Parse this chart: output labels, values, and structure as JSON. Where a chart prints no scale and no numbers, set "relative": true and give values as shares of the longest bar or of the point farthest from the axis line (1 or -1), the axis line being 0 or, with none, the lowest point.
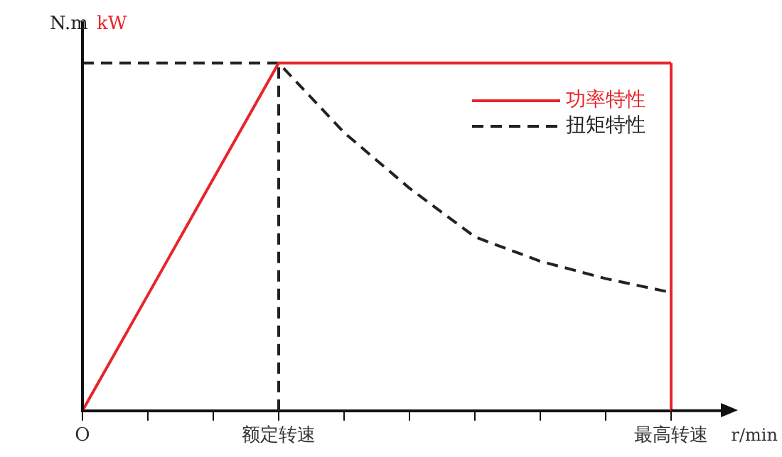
{
  "chart_data": {
    "type": "line",
    "xlabel": "r/min",
    "ylabel": "N.m",
    "y2label": "kW",
    "relative": true,
    "categories": [
      "O",
      null,
      null,
      "额定转速",
      null,
      null,
      null,
      null,
      null,
      "最高转速"
    ],
    "series": [
      {
        "name": "功率特性",
        "color": "#e8242b",
        "line_style": "solid",
        "values": [
          0,
          0.333,
          0.667,
          1,
          1,
          1,
          1,
          1,
          1,
          1
        ]
      },
      {
        "name": "扭矩特性",
        "color": "#222222",
        "line_style": "dashed",
        "values": [
          1,
          1,
          1,
          1,
          0.8,
          0.64,
          0.5,
          0.43,
          0.38,
          0.34
        ]
      }
    ],
    "ref_lines": [
      {
        "axis": "x",
        "value": "额定转速",
        "color": "#222222",
        "line_style": "dashed"
      },
      {
        "axis": "x",
        "value": "最高转速",
        "color": "#e8242b",
        "line_style": "solid"
      }
    ],
    "legend": "top right",
    "grid": false,
    "marker": "none"
  }
}
